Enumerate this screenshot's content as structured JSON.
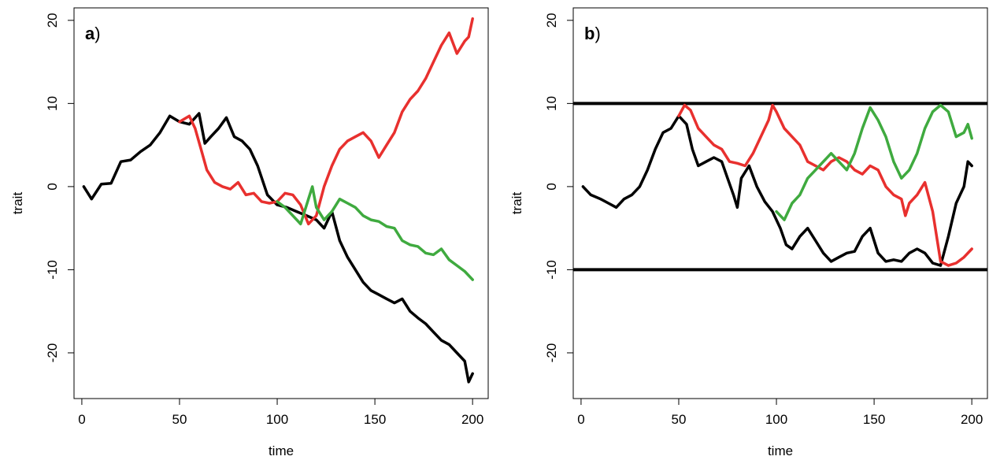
{
  "chart_data": [
    {
      "type": "line",
      "panel_label": "a",
      "panel_suffix": ")",
      "xlabel": "time",
      "ylabel": "trait",
      "xlim": [
        -4,
        208
      ],
      "ylim": [
        -25.5,
        21.5
      ],
      "xticks": [
        "0",
        "50",
        "100",
        "150",
        "200"
      ],
      "yticks": [
        "-20",
        "-10",
        "0",
        "10",
        "20"
      ],
      "grid": false,
      "legend": "none",
      "hlines": [],
      "series": [
        {
          "color": "#000000",
          "points": [
            [
              1,
              0
            ],
            [
              5,
              -1.5
            ],
            [
              10,
              0.3
            ],
            [
              15,
              0.4
            ],
            [
              20,
              3
            ],
            [
              25,
              3.2
            ],
            [
              30,
              4.2
            ],
            [
              35,
              5
            ],
            [
              40,
              6.5
            ],
            [
              45,
              8.5
            ],
            [
              50,
              7.8
            ],
            [
              55,
              7.5
            ],
            [
              60,
              8.8
            ],
            [
              63,
              5.2
            ],
            [
              66,
              6
            ],
            [
              70,
              7
            ],
            [
              74,
              8.3
            ],
            [
              78,
              6
            ],
            [
              82,
              5.5
            ],
            [
              86,
              4.5
            ],
            [
              90,
              2.5
            ],
            [
              95,
              -1
            ],
            [
              100,
              -2.2
            ],
            [
              105,
              -2.5
            ],
            [
              110,
              -3
            ],
            [
              115,
              -3.5
            ],
            [
              120,
              -4
            ],
            [
              124,
              -5
            ],
            [
              128,
              -3
            ],
            [
              132,
              -6.5
            ],
            [
              136,
              -8.5
            ],
            [
              140,
              -10
            ],
            [
              144,
              -11.5
            ],
            [
              148,
              -12.5
            ],
            [
              152,
              -13
            ],
            [
              156,
              -13.5
            ],
            [
              160,
              -14
            ],
            [
              164,
              -13.5
            ],
            [
              168,
              -15
            ],
            [
              172,
              -15.8
            ],
            [
              176,
              -16.5
            ],
            [
              180,
              -17.5
            ],
            [
              184,
              -18.5
            ],
            [
              188,
              -19
            ],
            [
              192,
              -20
            ],
            [
              196,
              -21
            ],
            [
              198,
              -23.5
            ],
            [
              200,
              -22.5
            ]
          ]
        },
        {
          "color": "#e8302e",
          "points": [
            [
              50,
              7.8
            ],
            [
              55,
              8.5
            ],
            [
              58,
              7
            ],
            [
              61,
              4.5
            ],
            [
              64,
              2
            ],
            [
              68,
              0.5
            ],
            [
              72,
              0
            ],
            [
              76,
              -0.3
            ],
            [
              80,
              0.5
            ],
            [
              84,
              -1
            ],
            [
              88,
              -0.8
            ],
            [
              92,
              -1.8
            ],
            [
              96,
              -2
            ],
            [
              100,
              -1.8
            ],
            [
              104,
              -0.8
            ],
            [
              108,
              -1
            ],
            [
              112,
              -2.2
            ],
            [
              116,
              -4.5
            ],
            [
              120,
              -3.5
            ],
            [
              124,
              0
            ],
            [
              128,
              2.5
            ],
            [
              132,
              4.5
            ],
            [
              136,
              5.5
            ],
            [
              140,
              6
            ],
            [
              144,
              6.5
            ],
            [
              148,
              5.5
            ],
            [
              152,
              3.5
            ],
            [
              156,
              5
            ],
            [
              160,
              6.5
            ],
            [
              164,
              9
            ],
            [
              168,
              10.5
            ],
            [
              172,
              11.5
            ],
            [
              176,
              13
            ],
            [
              180,
              15
            ],
            [
              184,
              17
            ],
            [
              188,
              18.5
            ],
            [
              192,
              16
            ],
            [
              196,
              17.5
            ],
            [
              198,
              18
            ],
            [
              200,
              20.2
            ]
          ]
        },
        {
          "color": "#3faa3f",
          "points": [
            [
              100,
              -1.8
            ],
            [
              104,
              -2.5
            ],
            [
              108,
              -3.5
            ],
            [
              112,
              -4.5
            ],
            [
              116,
              -1.5
            ],
            [
              118,
              0
            ],
            [
              120,
              -2.5
            ],
            [
              124,
              -4
            ],
            [
              128,
              -3
            ],
            [
              132,
              -1.5
            ],
            [
              136,
              -2
            ],
            [
              140,
              -2.5
            ],
            [
              144,
              -3.5
            ],
            [
              148,
              -4
            ],
            [
              152,
              -4.2
            ],
            [
              156,
              -4.8
            ],
            [
              160,
              -5
            ],
            [
              164,
              -6.5
            ],
            [
              168,
              -7
            ],
            [
              172,
              -7.2
            ],
            [
              176,
              -8
            ],
            [
              180,
              -8.2
            ],
            [
              184,
              -7.5
            ],
            [
              188,
              -8.8
            ],
            [
              192,
              -9.5
            ],
            [
              196,
              -10.2
            ],
            [
              200,
              -11.2
            ]
          ]
        }
      ]
    },
    {
      "type": "line",
      "panel_label": "b",
      "panel_suffix": ")",
      "xlabel": "time",
      "ylabel": "trait",
      "xlim": [
        -4,
        208
      ],
      "ylim": [
        -25.5,
        21.5
      ],
      "xticks": [
        "0",
        "50",
        "100",
        "150",
        "200"
      ],
      "yticks": [
        "-20",
        "-10",
        "0",
        "10",
        "20"
      ],
      "grid": false,
      "legend": "none",
      "hlines": [
        10,
        -10
      ],
      "series": [
        {
          "color": "#000000",
          "points": [
            [
              1,
              0
            ],
            [
              5,
              -1
            ],
            [
              10,
              -1.5
            ],
            [
              14,
              -2
            ],
            [
              18,
              -2.5
            ],
            [
              22,
              -1.5
            ],
            [
              26,
              -1
            ],
            [
              30,
              0
            ],
            [
              34,
              2
            ],
            [
              38,
              4.5
            ],
            [
              42,
              6.5
            ],
            [
              46,
              7
            ],
            [
              50,
              8.5
            ],
            [
              54,
              7.5
            ],
            [
              57,
              4.5
            ],
            [
              60,
              2.5
            ],
            [
              64,
              3
            ],
            [
              68,
              3.5
            ],
            [
              72,
              3
            ],
            [
              75,
              1
            ],
            [
              78,
              -1
            ],
            [
              80,
              -2.5
            ],
            [
              82,
              1
            ],
            [
              86,
              2.5
            ],
            [
              90,
              0
            ],
            [
              94,
              -1.8
            ],
            [
              98,
              -3
            ],
            [
              102,
              -5
            ],
            [
              105,
              -7
            ],
            [
              108,
              -7.5
            ],
            [
              112,
              -6
            ],
            [
              116,
              -5
            ],
            [
              120,
              -6.5
            ],
            [
              124,
              -8
            ],
            [
              128,
              -9
            ],
            [
              132,
              -8.5
            ],
            [
              136,
              -8
            ],
            [
              140,
              -7.8
            ],
            [
              144,
              -6
            ],
            [
              148,
              -5
            ],
            [
              152,
              -8
            ],
            [
              156,
              -9
            ],
            [
              160,
              -8.8
            ],
            [
              164,
              -9
            ],
            [
              168,
              -8
            ],
            [
              172,
              -7.5
            ],
            [
              176,
              -8
            ],
            [
              180,
              -9.2
            ],
            [
              184,
              -9.5
            ],
            [
              188,
              -6
            ],
            [
              192,
              -2
            ],
            [
              196,
              0
            ],
            [
              198,
              3
            ],
            [
              200,
              2.5
            ]
          ]
        },
        {
          "color": "#e8302e",
          "points": [
            [
              50,
              8.5
            ],
            [
              53,
              9.8
            ],
            [
              56,
              9.2
            ],
            [
              60,
              7
            ],
            [
              64,
              6
            ],
            [
              68,
              5
            ],
            [
              72,
              4.5
            ],
            [
              76,
              3
            ],
            [
              80,
              2.8
            ],
            [
              84,
              2.5
            ],
            [
              88,
              4
            ],
            [
              92,
              6
            ],
            [
              96,
              8
            ],
            [
              98,
              9.8
            ],
            [
              100,
              9
            ],
            [
              104,
              7
            ],
            [
              108,
              6
            ],
            [
              112,
              5
            ],
            [
              116,
              3
            ],
            [
              120,
              2.5
            ],
            [
              124,
              2
            ],
            [
              128,
              3
            ],
            [
              132,
              3.5
            ],
            [
              136,
              3
            ],
            [
              140,
              2
            ],
            [
              144,
              1.5
            ],
            [
              148,
              2.5
            ],
            [
              152,
              2
            ],
            [
              156,
              0
            ],
            [
              160,
              -1
            ],
            [
              164,
              -1.5
            ],
            [
              166,
              -3.5
            ],
            [
              168,
              -2
            ],
            [
              172,
              -1
            ],
            [
              176,
              0.5
            ],
            [
              180,
              -3
            ],
            [
              184,
              -9
            ],
            [
              188,
              -9.5
            ],
            [
              192,
              -9.2
            ],
            [
              196,
              -8.5
            ],
            [
              200,
              -7.5
            ]
          ]
        },
        {
          "color": "#3faa3f",
          "points": [
            [
              100,
              -3
            ],
            [
              104,
              -4
            ],
            [
              108,
              -2
            ],
            [
              112,
              -1
            ],
            [
              116,
              1
            ],
            [
              120,
              2
            ],
            [
              124,
              3
            ],
            [
              128,
              4
            ],
            [
              132,
              3
            ],
            [
              136,
              2
            ],
            [
              140,
              4
            ],
            [
              144,
              7
            ],
            [
              148,
              9.5
            ],
            [
              152,
              8
            ],
            [
              156,
              6
            ],
            [
              160,
              3
            ],
            [
              164,
              1
            ],
            [
              168,
              2
            ],
            [
              172,
              4
            ],
            [
              176,
              7
            ],
            [
              180,
              9
            ],
            [
              184,
              9.8
            ],
            [
              188,
              9
            ],
            [
              192,
              6
            ],
            [
              196,
              6.5
            ],
            [
              198,
              7.5
            ],
            [
              200,
              5.8
            ]
          ]
        }
      ]
    }
  ]
}
